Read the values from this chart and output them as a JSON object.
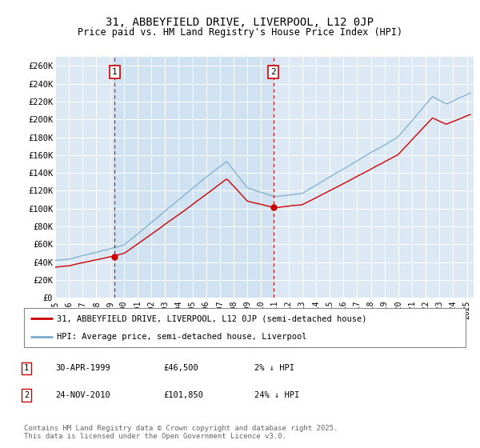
{
  "title": "31, ABBEYFIELD DRIVE, LIVERPOOL, L12 0JP",
  "subtitle": "Price paid vs. HM Land Registry's House Price Index (HPI)",
  "background_color": "#ffffff",
  "plot_bg_color": "#dce9f5",
  "grid_color": "#c8d8e8",
  "red_line_color": "#cc0000",
  "blue_line_color": "#7aaecc",
  "marker1_date": 1999.32,
  "marker1_value": 46500,
  "marker2_date": 2010.9,
  "marker2_value": 101850,
  "legend_label_red": "31, ABBEYFIELD DRIVE, LIVERPOOL, L12 0JP (semi-detached house)",
  "legend_label_blue": "HPI: Average price, semi-detached house, Liverpool",
  "footer": "Contains HM Land Registry data © Crown copyright and database right 2025.\nThis data is licensed under the Open Government Licence v3.0.",
  "table_row1": [
    "1",
    "30-APR-1999",
    "£46,500",
    "2% ↓ HPI"
  ],
  "table_row2": [
    "2",
    "24-NOV-2010",
    "£101,850",
    "24% ↓ HPI"
  ],
  "xlim": [
    1995.0,
    2025.5
  ],
  "ylim": [
    0,
    270000
  ],
  "yticks": [
    0,
    20000,
    40000,
    60000,
    80000,
    100000,
    120000,
    140000,
    160000,
    180000,
    200000,
    220000,
    240000,
    260000
  ],
  "ytick_labels": [
    "£0",
    "£20K",
    "£40K",
    "£60K",
    "£80K",
    "£100K",
    "£120K",
    "£140K",
    "£160K",
    "£180K",
    "£200K",
    "£220K",
    "£240K",
    "£260K"
  ],
  "xticks": [
    1995,
    1996,
    1997,
    1998,
    1999,
    2000,
    2001,
    2002,
    2003,
    2004,
    2005,
    2006,
    2007,
    2008,
    2009,
    2010,
    2011,
    2012,
    2013,
    2014,
    2015,
    2016,
    2017,
    2018,
    2019,
    2020,
    2021,
    2022,
    2023,
    2024,
    2025
  ]
}
